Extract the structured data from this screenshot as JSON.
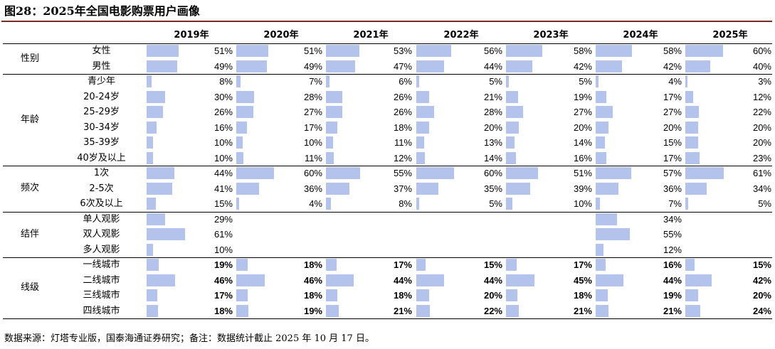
{
  "title": "图28：2025年全国电影购票用户画像",
  "source": "数据来源：灯塔专业版，国泰海通证券研究；备注：数据统计截止 2025 年 10 月 17 日。",
  "colors": {
    "bar": "#b3c3eb",
    "title_rule": "#7a2a2a"
  },
  "chart_data": {
    "type": "table",
    "title": "图28：2025年全国电影购票用户画像",
    "columns": [
      "2019年",
      "2020年",
      "2021年",
      "2022年",
      "2023年",
      "2024年",
      "2025年"
    ],
    "value_unit": "%",
    "groups": [
      {
        "name": "性别",
        "bold_values": false,
        "rows": [
          {
            "label": "女性",
            "values": [
              51,
              51,
              53,
              56,
              58,
              58,
              60
            ]
          },
          {
            "label": "男性",
            "values": [
              49,
              49,
              47,
              44,
              42,
              42,
              40
            ]
          }
        ]
      },
      {
        "name": "年龄",
        "bold_values": false,
        "rows": [
          {
            "label": "青少年",
            "values": [
              8,
              7,
              6,
              5,
              5,
              4,
              3
            ]
          },
          {
            "label": "20-24岁",
            "values": [
              30,
              28,
              26,
              21,
              19,
              17,
              12
            ]
          },
          {
            "label": "25-29岁",
            "values": [
              26,
              27,
              26,
              28,
              27,
              27,
              22
            ]
          },
          {
            "label": "30-34岁",
            "values": [
              16,
              17,
              18,
              20,
              20,
              20,
              20
            ]
          },
          {
            "label": "35-39岁",
            "values": [
              10,
              10,
              11,
              13,
              14,
              15,
              20
            ]
          },
          {
            "label": "40岁及以上",
            "values": [
              10,
              11,
              12,
              14,
              16,
              17,
              23
            ]
          }
        ]
      },
      {
        "name": "频次",
        "bold_values": false,
        "rows": [
          {
            "label": "1次",
            "values": [
              44,
              60,
              55,
              60,
              51,
              57,
              61
            ]
          },
          {
            "label": "2-5次",
            "values": [
              41,
              36,
              37,
              35,
              39,
              36,
              34
            ]
          },
          {
            "label": "6次及以上",
            "values": [
              15,
              4,
              8,
              5,
              10,
              7,
              5
            ]
          }
        ]
      },
      {
        "name": "结伴",
        "bold_values": false,
        "rows": [
          {
            "label": "单人观影",
            "values": [
              29,
              null,
              null,
              null,
              null,
              34,
              null
            ]
          },
          {
            "label": "双人观影",
            "values": [
              61,
              null,
              null,
              null,
              null,
              55,
              null
            ]
          },
          {
            "label": "多人观影",
            "values": [
              10,
              null,
              null,
              null,
              null,
              12,
              null
            ]
          }
        ]
      },
      {
        "name": "线级",
        "bold_values": true,
        "rows": [
          {
            "label": "一线城市",
            "values": [
              19,
              18,
              17,
              15,
              17,
              16,
              15
            ]
          },
          {
            "label": "二线城市",
            "values": [
              46,
              46,
              44,
              44,
              45,
              44,
              42
            ]
          },
          {
            "label": "三线城市",
            "values": [
              17,
              18,
              18,
              20,
              18,
              19,
              20
            ]
          },
          {
            "label": "四线城市",
            "values": [
              18,
              19,
              21,
              22,
              21,
              21,
              24
            ]
          }
        ]
      }
    ]
  }
}
